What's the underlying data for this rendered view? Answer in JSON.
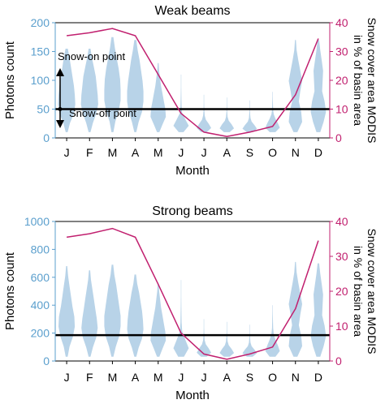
{
  "colors": {
    "photons": "#b8d3e8",
    "photons_axis": "#5b9fcd",
    "snow": "#c1206f",
    "threshold": "#000000"
  },
  "annotations": {
    "snow_on": "Snow-on point",
    "snow_off": "Snow-off point"
  },
  "chart_data": [
    {
      "type": "violin+line",
      "title": "Weak beams",
      "xlabel": "Month",
      "ylabel_left": "Photons count",
      "ylabel_right": "Snow cover area MODIS in % of basin area",
      "ylabel_right_lines": [
        "Snow cover area MODIS",
        "in % of basin area"
      ],
      "categories": [
        "J",
        "F",
        "M",
        "A",
        "M",
        "J",
        "J",
        "A",
        "S",
        "O",
        "N",
        "D"
      ],
      "ylim_left": [
        0,
        200
      ],
      "yticks_left": [
        0,
        50,
        100,
        150,
        200
      ],
      "ylim_right": [
        0,
        40
      ],
      "yticks_right": [
        0,
        10,
        20,
        30,
        40
      ],
      "threshold": 50,
      "snow_cover": [
        35.5,
        36.5,
        38,
        35.5,
        22,
        8.5,
        2,
        0.5,
        2,
        4,
        15,
        34.5
      ],
      "violins": [
        {
          "min": 10,
          "max": 155,
          "widths": [
            0.1,
            0.35,
            0.75,
            0.9,
            0.85,
            0.75,
            0.6,
            0.45,
            0.3,
            0.12
          ]
        },
        {
          "min": 10,
          "max": 155,
          "widths": [
            0.1,
            0.35,
            0.7,
            0.9,
            0.85,
            0.75,
            0.65,
            0.45,
            0.25,
            0.1
          ]
        },
        {
          "min": 10,
          "max": 175,
          "widths": [
            0.1,
            0.3,
            0.65,
            0.85,
            0.85,
            0.8,
            0.65,
            0.45,
            0.25,
            0.1
          ]
        },
        {
          "min": 10,
          "max": 170,
          "widths": [
            0.1,
            0.35,
            0.7,
            0.85,
            0.85,
            0.75,
            0.6,
            0.45,
            0.25,
            0.1
          ]
        },
        {
          "min": 10,
          "max": 130,
          "widths": [
            0.12,
            0.45,
            0.8,
            0.75,
            0.6,
            0.45,
            0.3,
            0.2,
            0.1,
            0.05
          ]
        },
        {
          "min": 10,
          "max": 110,
          "widths": [
            0.25,
            0.8,
            0.45,
            0.12,
            0.06,
            0.04,
            0.03,
            0.02,
            0.02,
            0.02
          ]
        },
        {
          "min": 10,
          "max": 75,
          "widths": [
            0.3,
            0.75,
            0.5,
            0.2,
            0.08,
            0.05,
            0.03,
            0.02,
            0.02,
            0.02
          ]
        },
        {
          "min": 10,
          "max": 70,
          "widths": [
            0.3,
            0.75,
            0.5,
            0.2,
            0.08,
            0.05,
            0.03,
            0.02,
            0.02,
            0.02
          ]
        },
        {
          "min": 10,
          "max": 65,
          "widths": [
            0.3,
            0.75,
            0.5,
            0.2,
            0.08,
            0.05,
            0.03,
            0.02,
            0.02,
            0.02
          ]
        },
        {
          "min": 10,
          "max": 80,
          "widths": [
            0.3,
            0.75,
            0.55,
            0.3,
            0.12,
            0.06,
            0.04,
            0.03,
            0.02,
            0.02
          ]
        },
        {
          "min": 10,
          "max": 170,
          "widths": [
            0.2,
            0.7,
            0.6,
            0.35,
            0.5,
            0.7,
            0.5,
            0.3,
            0.12,
            0.05
          ]
        },
        {
          "min": 10,
          "max": 170,
          "widths": [
            0.2,
            0.55,
            0.8,
            0.65,
            0.4,
            0.45,
            0.5,
            0.35,
            0.2,
            0.08
          ]
        }
      ]
    },
    {
      "type": "violin+line",
      "title": "Strong beams",
      "xlabel": "Month",
      "ylabel_left": "Photons count",
      "ylabel_right": "Snow cover area MODIS in % of basin area",
      "ylabel_right_lines": [
        "Snow cover area MODIS",
        "in % of basin area"
      ],
      "categories": [
        "J",
        "F",
        "M",
        "A",
        "M",
        "J",
        "J",
        "A",
        "S",
        "O",
        "N",
        "D"
      ],
      "ylim_left": [
        0,
        1000
      ],
      "yticks_left": [
        0,
        200,
        400,
        600,
        800,
        1000
      ],
      "ylim_right": [
        0,
        40
      ],
      "yticks_right": [
        0,
        10,
        20,
        30,
        40
      ],
      "threshold": 185,
      "snow_cover": [
        35.5,
        36.5,
        38,
        35.5,
        22,
        8,
        2,
        0.5,
        2,
        4,
        15,
        34.5
      ],
      "violins": [
        {
          "min": 30,
          "max": 680,
          "widths": [
            0.1,
            0.3,
            0.65,
            0.85,
            0.8,
            0.6,
            0.45,
            0.3,
            0.15,
            0.06
          ]
        },
        {
          "min": 30,
          "max": 650,
          "widths": [
            0.1,
            0.35,
            0.7,
            0.85,
            0.75,
            0.6,
            0.45,
            0.3,
            0.15,
            0.06
          ]
        },
        {
          "min": 30,
          "max": 690,
          "widths": [
            0.1,
            0.35,
            0.7,
            0.85,
            0.85,
            0.7,
            0.55,
            0.4,
            0.2,
            0.08
          ]
        },
        {
          "min": 30,
          "max": 620,
          "widths": [
            0.1,
            0.35,
            0.7,
            0.85,
            0.8,
            0.7,
            0.55,
            0.4,
            0.2,
            0.08
          ]
        },
        {
          "min": 30,
          "max": 560,
          "widths": [
            0.12,
            0.45,
            0.8,
            0.75,
            0.6,
            0.45,
            0.3,
            0.2,
            0.1,
            0.05
          ]
        },
        {
          "min": 30,
          "max": 580,
          "widths": [
            0.3,
            0.8,
            0.45,
            0.12,
            0.06,
            0.04,
            0.03,
            0.02,
            0.02,
            0.02
          ]
        },
        {
          "min": 30,
          "max": 300,
          "widths": [
            0.3,
            0.75,
            0.5,
            0.2,
            0.08,
            0.05,
            0.03,
            0.02,
            0.02,
            0.02
          ]
        },
        {
          "min": 30,
          "max": 280,
          "widths": [
            0.3,
            0.75,
            0.5,
            0.2,
            0.08,
            0.05,
            0.03,
            0.02,
            0.02,
            0.02
          ]
        },
        {
          "min": 30,
          "max": 260,
          "widths": [
            0.3,
            0.75,
            0.5,
            0.2,
            0.08,
            0.05,
            0.03,
            0.02,
            0.02,
            0.02
          ]
        },
        {
          "min": 30,
          "max": 400,
          "widths": [
            0.3,
            0.75,
            0.55,
            0.3,
            0.12,
            0.06,
            0.04,
            0.03,
            0.02,
            0.02
          ]
        },
        {
          "min": 30,
          "max": 710,
          "widths": [
            0.2,
            0.7,
            0.6,
            0.35,
            0.5,
            0.7,
            0.5,
            0.3,
            0.12,
            0.05
          ]
        },
        {
          "min": 30,
          "max": 700,
          "widths": [
            0.2,
            0.55,
            0.8,
            0.65,
            0.4,
            0.45,
            0.5,
            0.35,
            0.2,
            0.08
          ]
        }
      ]
    }
  ]
}
